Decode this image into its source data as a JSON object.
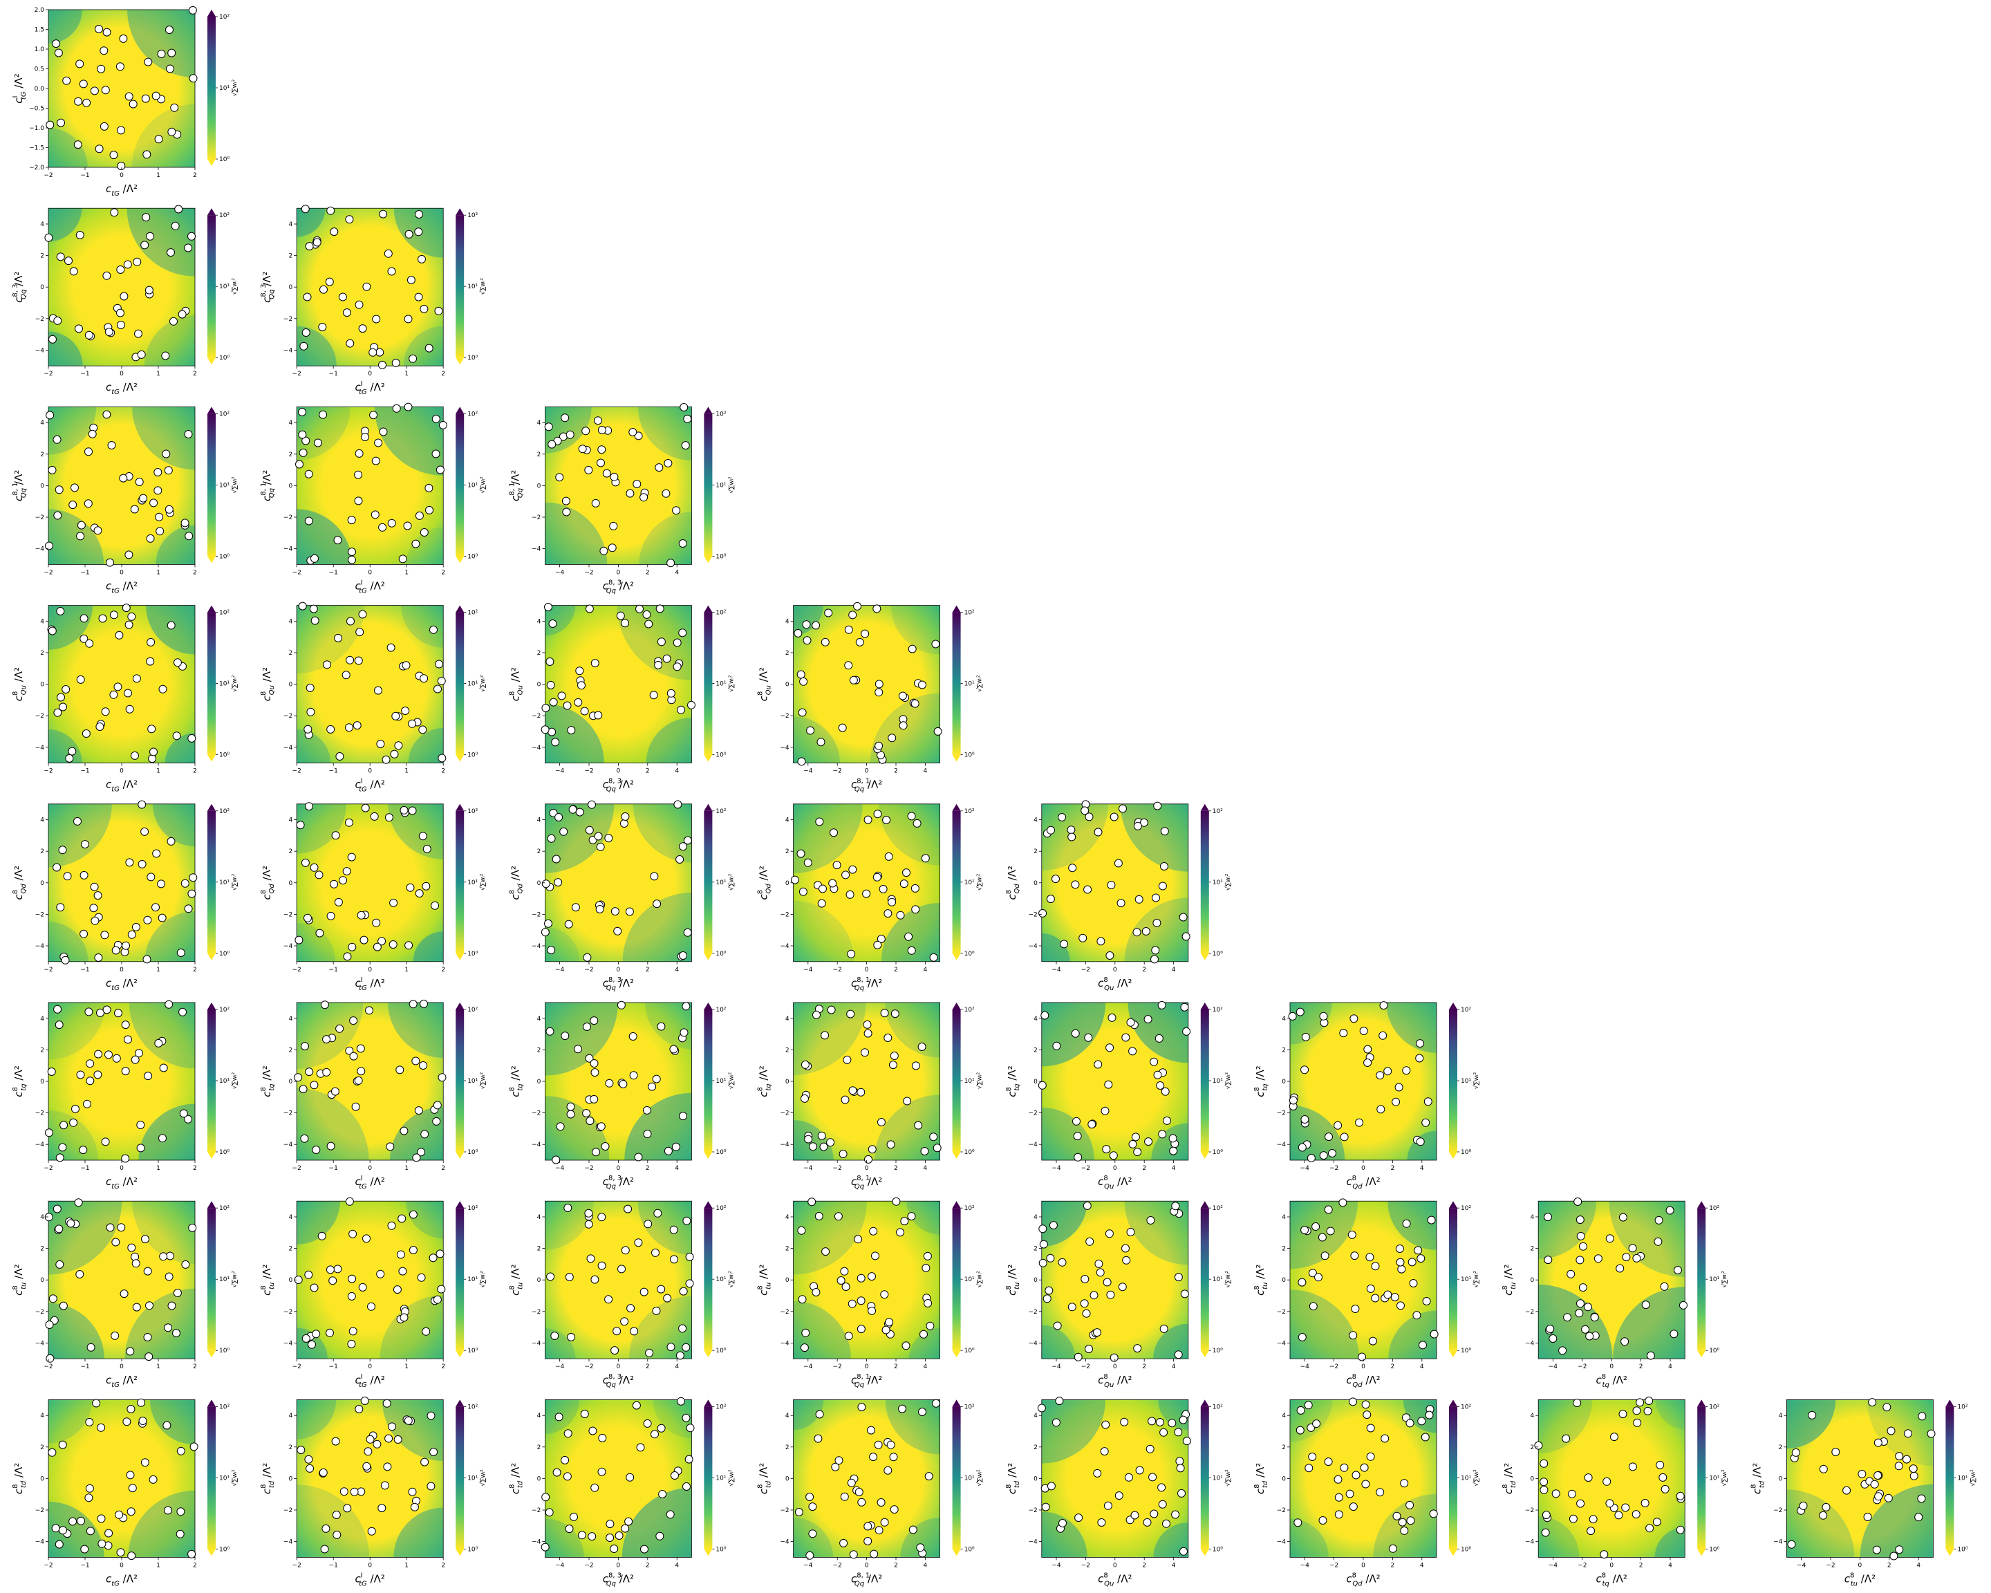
{
  "figure": {
    "type": "corner-grid",
    "description_free": true,
    "colormap": [
      "#fde725",
      "#5ec962",
      "#21918c",
      "#3b528b",
      "#440154"
    ],
    "point_fill": "#ffffff",
    "point_stroke": "#000000"
  },
  "params": [
    {
      "key": "ctG",
      "base": "c",
      "sup": "",
      "sub": "tG",
      "range": [
        -2,
        2
      ],
      "ticks": [
        -2,
        -1,
        0,
        1,
        2
      ]
    },
    {
      "key": "cItG",
      "base": "c",
      "sup": "I",
      "sub": "tG",
      "range": [
        -2,
        2
      ],
      "ticks": [
        -2,
        -1,
        0,
        1,
        2
      ]
    },
    {
      "key": "cQq83",
      "base": "c",
      "sup": "8, 3",
      "sub": "Qq",
      "range": [
        -5,
        5
      ],
      "ticks": [
        -4,
        -2,
        0,
        2,
        4
      ]
    },
    {
      "key": "cQq81",
      "base": "c",
      "sup": "8, 1",
      "sub": "Qq",
      "range": [
        -5,
        5
      ],
      "ticks": [
        -4,
        -2,
        0,
        2,
        4
      ]
    },
    {
      "key": "cQu8",
      "base": "c",
      "sup": "8",
      "sub": "Qu",
      "range": [
        -5,
        5
      ],
      "ticks": [
        -4,
        -2,
        0,
        2,
        4
      ]
    },
    {
      "key": "cQd8",
      "base": "c",
      "sup": "8",
      "sub": "Qd",
      "range": [
        -5,
        5
      ],
      "ticks": [
        -4,
        -2,
        0,
        2,
        4
      ]
    },
    {
      "key": "ctq8",
      "base": "c",
      "sup": "8",
      "sub": "tq",
      "range": [
        -5,
        5
      ],
      "ticks": [
        -4,
        -2,
        0,
        2,
        4
      ]
    },
    {
      "key": "ctu8",
      "base": "c",
      "sup": "8",
      "sub": "tu",
      "range": [
        -5,
        5
      ],
      "ticks": [
        -4,
        -2,
        0,
        2,
        4
      ]
    },
    {
      "key": "ctd8",
      "base": "c",
      "sup": "8",
      "sub": "td",
      "range": [
        -5,
        5
      ],
      "ticks": [
        -4,
        -2,
        0,
        2,
        4
      ]
    }
  ],
  "special_ranges": {
    "row0_y": {
      "range": [
        -2,
        2
      ],
      "ticks": [
        "-2.0",
        "-1.5",
        "-1.0",
        "-0.5",
        "0.0",
        "0.5",
        "1.0",
        "1.5",
        "2.0"
      ]
    }
  },
  "axis_suffix": "/Λ²",
  "colorbar": {
    "tick_labels": [
      "10⁰",
      "10¹",
      "10²"
    ],
    "label": "√∑wᵢ²"
  },
  "chart_data": {
    "type": "heatmap",
    "panels_note": "lower-triangle grid: row i (y = params[i+1]) vs column j (x = params[j]) for j <= i",
    "n_rows": 8,
    "points_per_panel": 40,
    "color_scale": "log",
    "zlim": [
      1,
      100
    ],
    "colorbar_ticks": [
      "10⁰",
      "10¹",
      "10²"
    ]
  }
}
